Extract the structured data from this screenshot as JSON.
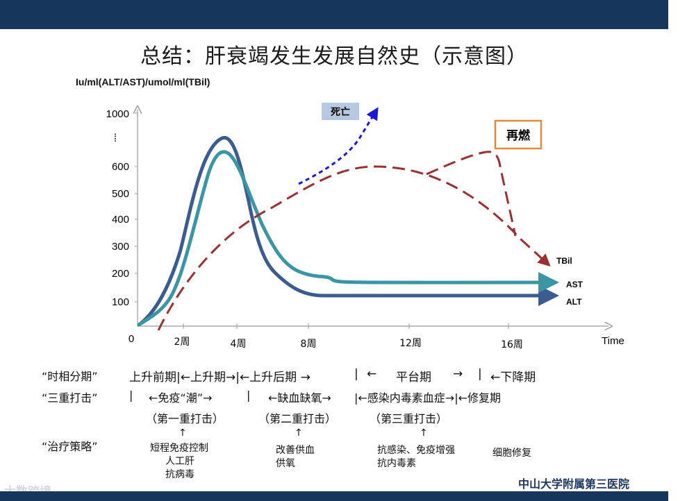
{
  "title": "总结：肝衰竭发生发展自然史（示意图）",
  "y_axis_label": "Iu/ml(ALT/AST)/umol/ml(TBil)",
  "x_axis_label": "Time",
  "y_ticks": [
    "1000",
    "600",
    "500",
    "400",
    "300",
    "200",
    "100"
  ],
  "x_ticks": [
    "0",
    "2周",
    "4周",
    "8周",
    "12周",
    "16周"
  ],
  "y_break": "⁞",
  "curve_labels": {
    "tbil": "TBil",
    "ast": "AST",
    "alt": "ALT"
  },
  "annotations": {
    "death": "死亡",
    "rekindle": "再燃"
  },
  "colors": {
    "alt": "#3c5b91",
    "ast": "#3a96a3",
    "tbil": "#9b3030",
    "death": "#1a1ad6",
    "box_fill": "#b7c9e2",
    "box_border": "#e08a3a"
  },
  "rows": {
    "phase_title": "“时相分期”",
    "phases": [
      "上升前期|←上升期→|←上升后期 →",
      "|",
      "←",
      "平台期",
      "→",
      "|",
      "←下降期"
    ],
    "strike_title": "“三重打击”",
    "strike_sep1": "|",
    "strike1": "←免疫“潮”→",
    "strike_sep2": "|",
    "strike2": "←缺血缺氧→",
    "strike3": "|←感染内毒素血症→|←修复期",
    "strike_sub1": "（第一重打击）",
    "strike_sub2": "（第二重打击）",
    "strike_sub3": "（第三重打击）",
    "treat_title": "“治疗策略”",
    "arrow": "↑",
    "treat1": [
      "短程免疫控制",
      "人工肝",
      "抗病毒"
    ],
    "treat2": [
      "改善供血",
      "供氧"
    ],
    "treat3": [
      "抗感染、免疫增强",
      "抗内毒素"
    ],
    "treat4": "细胞修复"
  },
  "footer": "中山大学附属第三医院",
  "watermark": "大数跨境"
}
